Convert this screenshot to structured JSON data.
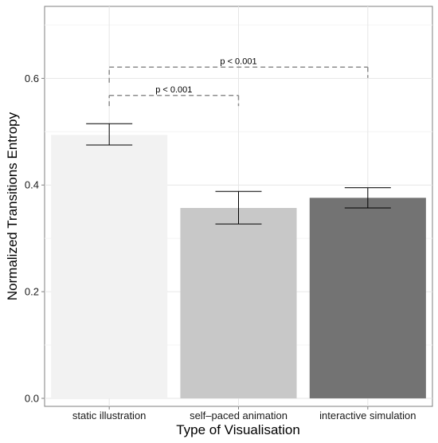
{
  "chart_data": {
    "type": "bar",
    "categories": [
      "static illustration",
      "self–paced animation",
      "interactive simulation"
    ],
    "values": [
      0.494,
      0.357,
      0.376
    ],
    "error_bars": [
      {
        "low": 0.475,
        "high": 0.515
      },
      {
        "low": 0.327,
        "high": 0.388
      },
      {
        "low": 0.357,
        "high": 0.395
      }
    ],
    "bar_colors": [
      "#f2f2f2",
      "#c8c8c8",
      "#737373"
    ],
    "xlabel": "Type of Visualisation",
    "ylabel": "Normalized Transitions Entropy",
    "ylim": [
      -0.015,
      0.735
    ],
    "yticks": [
      0.0,
      0.2,
      0.4,
      0.6
    ],
    "ytick_labels": [
      "0.0",
      "0.2",
      "0.4",
      "0.6"
    ],
    "grid": true,
    "legend": "none",
    "annotations": [
      {
        "from": 0,
        "to": 1,
        "y": 0.568,
        "left_drop": 0.548,
        "right_drop": 0.548,
        "label": "p < 0.001"
      },
      {
        "from": 0,
        "to": 2,
        "y": 0.621,
        "left_drop": 0.592,
        "right_drop": 0.601,
        "label": "p < 0.001"
      }
    ]
  }
}
